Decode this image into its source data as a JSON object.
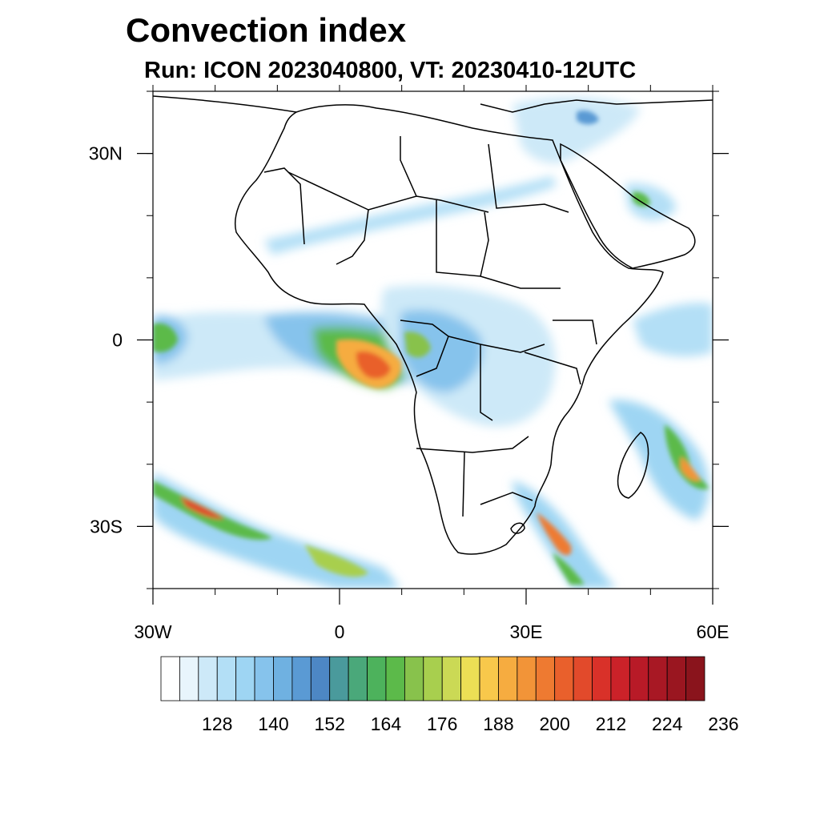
{
  "title": "Convection index",
  "subtitle": "Run: ICON 2023040800,  VT: 20230410-12UTC",
  "map": {
    "lon_range": [
      -30,
      60
    ],
    "lat_range": [
      -40,
      40
    ],
    "lon_ticks": [
      {
        "value": -30,
        "label": "30W"
      },
      {
        "value": 0,
        "label": "0"
      },
      {
        "value": 30,
        "label": "30E"
      },
      {
        "value": 60,
        "label": "60E"
      }
    ],
    "lat_ticks": [
      {
        "value": 30,
        "label": "30N"
      },
      {
        "value": 0,
        "label": "0"
      },
      {
        "value": -30,
        "label": "30S"
      }
    ],
    "minor_lon_step": 10,
    "minor_lat_step": 10
  },
  "colorbar": {
    "colors": [
      "#ffffff",
      "#e8f5fc",
      "#cde9f8",
      "#b3dff6",
      "#9ed5f3",
      "#86c3ec",
      "#6fb1e1",
      "#5a9ad4",
      "#4d87c4",
      "#4a9a9c",
      "#4aa87a",
      "#4db25c",
      "#5cba4a",
      "#88c24c",
      "#a8cf4e",
      "#cbd955",
      "#ecdf55",
      "#f8c84b",
      "#f6ac40",
      "#f29438",
      "#ee7a31",
      "#e9602c",
      "#e24a2b",
      "#d93129",
      "#cb2229",
      "#b81a27",
      "#a81824",
      "#9a1620",
      "#8a141c"
    ],
    "labels": [
      "128",
      "140",
      "152",
      "164",
      "176",
      "188",
      "200",
      "212",
      "224",
      "236"
    ]
  }
}
